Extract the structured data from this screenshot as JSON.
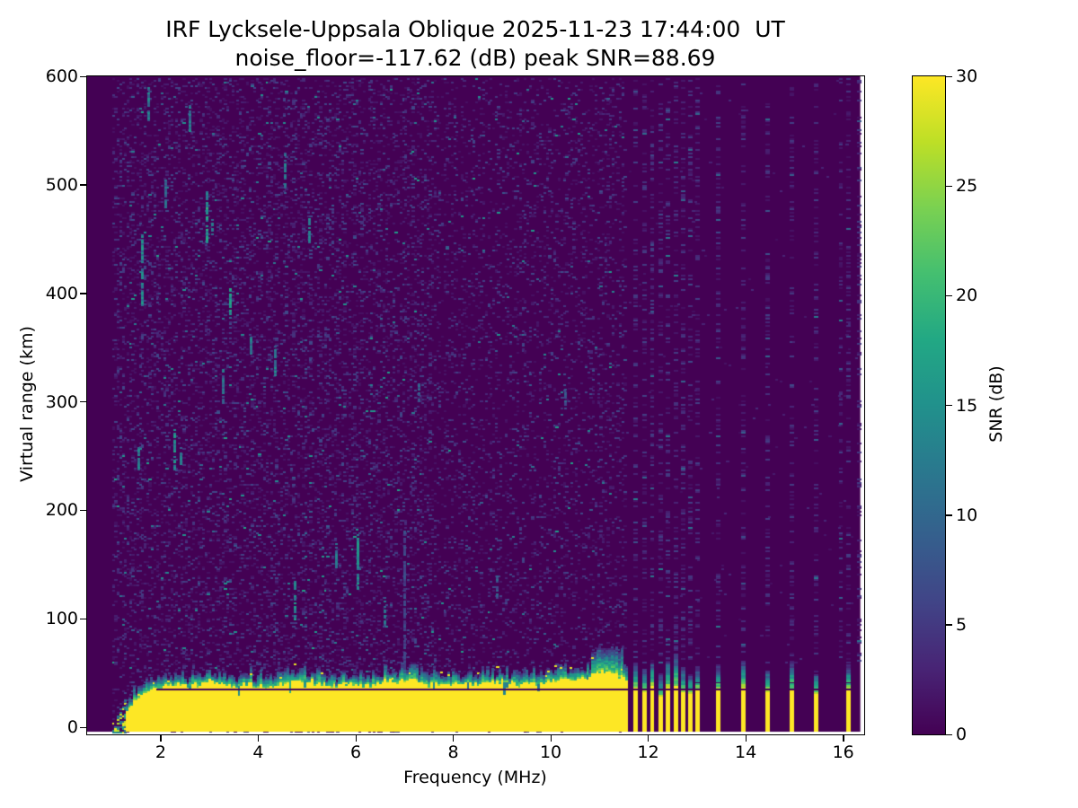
{
  "figure_title": {
    "line1": "IRF Lycksele-Uppsala Oblique 2025-11-23 17:44:00  UT",
    "line2": "noise_floor=-117.62 (dB) peak SNR=88.69"
  },
  "axes": {
    "xlabel": "Frequency (MHz)",
    "ylabel": "Virtual range (km)"
  },
  "colorbar": {
    "label": "SNR (dB)"
  },
  "chart_data": {
    "type": "heatmap",
    "title": "IRF Lycksele-Uppsala Oblique 2025-11-23 17:44:00  UT",
    "subtitle": "noise_floor=-117.62 (dB) peak SNR=88.69",
    "noise_floor_db": -117.62,
    "peak_snr_db": 88.69,
    "x_axis": {
      "label": "Frequency (MHz)",
      "lim_mhz": [
        0.49,
        16.43
      ],
      "data_max_mhz": 16.35,
      "ticks": [
        2,
        4,
        6,
        8,
        10,
        12,
        14,
        16
      ]
    },
    "y_axis": {
      "label": "Virtual range (km)",
      "lim_km": [
        -6.6,
        600
      ],
      "data_min_km": -4.5,
      "ticks": [
        0,
        100,
        200,
        300,
        400,
        500,
        600
      ]
    },
    "color_axis": {
      "label": "SNR (dB)",
      "lim_db": [
        0,
        30
      ],
      "ticks": [
        0,
        5,
        10,
        15,
        20,
        25,
        30
      ],
      "colormap": "viridis"
    },
    "colormap_stops": [
      [
        0.0,
        "#440154"
      ],
      [
        0.1,
        "#482475"
      ],
      [
        0.2,
        "#414487"
      ],
      [
        0.3,
        "#355f8d"
      ],
      [
        0.4,
        "#2a788e"
      ],
      [
        0.5,
        "#21918c"
      ],
      [
        0.6,
        "#22a884"
      ],
      [
        0.7,
        "#44bf70"
      ],
      [
        0.8,
        "#7ad151"
      ],
      [
        0.9,
        "#bddf26"
      ],
      [
        1.0,
        "#fde725"
      ]
    ],
    "background_snr_db": 0,
    "noise_seed": 7,
    "noise": {
      "col_step_mhz": 0.05,
      "row_step_km": 1.66,
      "full_band_mhz": [
        1.0,
        11.55
      ],
      "density_left": 0.2,
      "density_right": 0.13,
      "density_split_mhz": 7.6,
      "column_density": 0.26,
      "sparse_density": 0.004
    },
    "echo_band": {
      "f_onset_mhz": 1.0,
      "f_solid_start_mhz": 1.28,
      "f_solid_end_mhz": 11.55,
      "top_profile_km": [
        [
          1.28,
          14
        ],
        [
          1.4,
          22
        ],
        [
          1.55,
          28
        ],
        [
          1.75,
          33
        ],
        [
          2.0,
          36
        ],
        [
          2.3,
          40
        ],
        [
          2.6,
          38
        ],
        [
          3.0,
          42
        ],
        [
          3.4,
          38
        ],
        [
          3.8,
          40
        ],
        [
          4.2,
          37
        ],
        [
          4.6,
          41
        ],
        [
          5.0,
          43
        ],
        [
          5.4,
          38
        ],
        [
          5.8,
          40
        ],
        [
          6.2,
          37
        ],
        [
          6.6,
          42
        ],
        [
          7.0,
          44
        ],
        [
          7.4,
          40
        ],
        [
          7.8,
          38
        ],
        [
          8.2,
          41
        ],
        [
          8.6,
          39
        ],
        [
          9.0,
          42
        ],
        [
          9.4,
          39
        ],
        [
          9.8,
          41
        ],
        [
          10.2,
          43
        ],
        [
          10.6,
          44
        ],
        [
          10.85,
          48
        ],
        [
          11.05,
          52
        ],
        [
          11.25,
          50
        ],
        [
          11.45,
          46
        ],
        [
          11.55,
          44
        ]
      ],
      "hump_mhz": [
        10.8,
        11.45
      ],
      "dark_line_km": 36,
      "dark_line_f_range_mhz": [
        1.9,
        16.2
      ]
    },
    "stripes": [
      {
        "f_mhz": 11.74,
        "yellow_top_km": 38,
        "teal_top_km": 60
      },
      {
        "f_mhz": 11.92,
        "yellow_top_km": 34,
        "teal_top_km": 56
      },
      {
        "f_mhz": 12.08,
        "yellow_top_km": 40,
        "teal_top_km": 64
      },
      {
        "f_mhz": 12.26,
        "yellow_top_km": 30,
        "teal_top_km": 50
      },
      {
        "f_mhz": 12.41,
        "yellow_top_km": 38,
        "teal_top_km": 66
      },
      {
        "f_mhz": 12.57,
        "yellow_top_km": 40,
        "teal_top_km": 70
      },
      {
        "f_mhz": 12.72,
        "yellow_top_km": 34,
        "teal_top_km": 56
      },
      {
        "f_mhz": 12.86,
        "yellow_top_km": 32,
        "teal_top_km": 50
      },
      {
        "f_mhz": 13.01,
        "yellow_top_km": 36,
        "teal_top_km": 56
      },
      {
        "f_mhz": 13.43,
        "yellow_top_km": 36,
        "teal_top_km": 58
      },
      {
        "f_mhz": 13.95,
        "yellow_top_km": 38,
        "teal_top_km": 64
      },
      {
        "f_mhz": 14.45,
        "yellow_top_km": 34,
        "teal_top_km": 56
      },
      {
        "f_mhz": 14.95,
        "yellow_top_km": 36,
        "teal_top_km": 62
      },
      {
        "f_mhz": 15.45,
        "yellow_top_km": 32,
        "teal_top_km": 52
      },
      {
        "f_mhz": 16.1,
        "yellow_top_km": 36,
        "teal_top_km": 58
      }
    ],
    "extra_noise_cols_mhz": [
      15.95,
      16.33
    ],
    "streaks": [
      {
        "f_mhz": 1.62,
        "km": [
          390,
          460
        ],
        "snr_db": 13
      },
      {
        "f_mhz": 1.75,
        "km": [
          560,
          590
        ],
        "snr_db": 12
      },
      {
        "f_mhz": 1.55,
        "km": [
          238,
          262
        ],
        "snr_db": 12
      },
      {
        "f_mhz": 2.1,
        "km": [
          480,
          505
        ],
        "snr_db": 10
      },
      {
        "f_mhz": 2.28,
        "km": [
          238,
          275
        ],
        "snr_db": 14
      },
      {
        "f_mhz": 2.42,
        "km": [
          243,
          258
        ],
        "snr_db": 11
      },
      {
        "f_mhz": 2.6,
        "km": [
          550,
          575
        ],
        "snr_db": 12
      },
      {
        "f_mhz": 2.95,
        "km": [
          448,
          495
        ],
        "snr_db": 15
      },
      {
        "f_mhz": 3.05,
        "km": [
          455,
          470
        ],
        "snr_db": 12
      },
      {
        "f_mhz": 3.28,
        "km": [
          300,
          330
        ],
        "snr_db": 10
      },
      {
        "f_mhz": 3.42,
        "km": [
          378,
          405
        ],
        "snr_db": 14
      },
      {
        "f_mhz": 3.85,
        "km": [
          345,
          360
        ],
        "snr_db": 11
      },
      {
        "f_mhz": 4.35,
        "km": [
          325,
          352
        ],
        "snr_db": 12
      },
      {
        "f_mhz": 4.55,
        "km": [
          490,
          530
        ],
        "snr_db": 12
      },
      {
        "f_mhz": 4.75,
        "km": [
          100,
          135
        ],
        "snr_db": 13
      },
      {
        "f_mhz": 5.05,
        "km": [
          448,
          470
        ],
        "snr_db": 11
      },
      {
        "f_mhz": 5.6,
        "km": [
          148,
          170
        ],
        "snr_db": 11
      },
      {
        "f_mhz": 6.05,
        "km": [
          128,
          178
        ],
        "snr_db": 13
      },
      {
        "f_mhz": 6.6,
        "km": [
          95,
          120
        ],
        "snr_db": 10
      },
      {
        "f_mhz": 7.0,
        "km": [
          55,
          182
        ],
        "snr_db": 6
      },
      {
        "f_mhz": 7.3,
        "km": [
          300,
          318
        ],
        "snr_db": 9
      },
      {
        "f_mhz": 8.9,
        "km": [
          120,
          140
        ],
        "snr_db": 8
      },
      {
        "f_mhz": 10.3,
        "km": [
          295,
          312
        ],
        "snr_db": 8
      }
    ]
  }
}
